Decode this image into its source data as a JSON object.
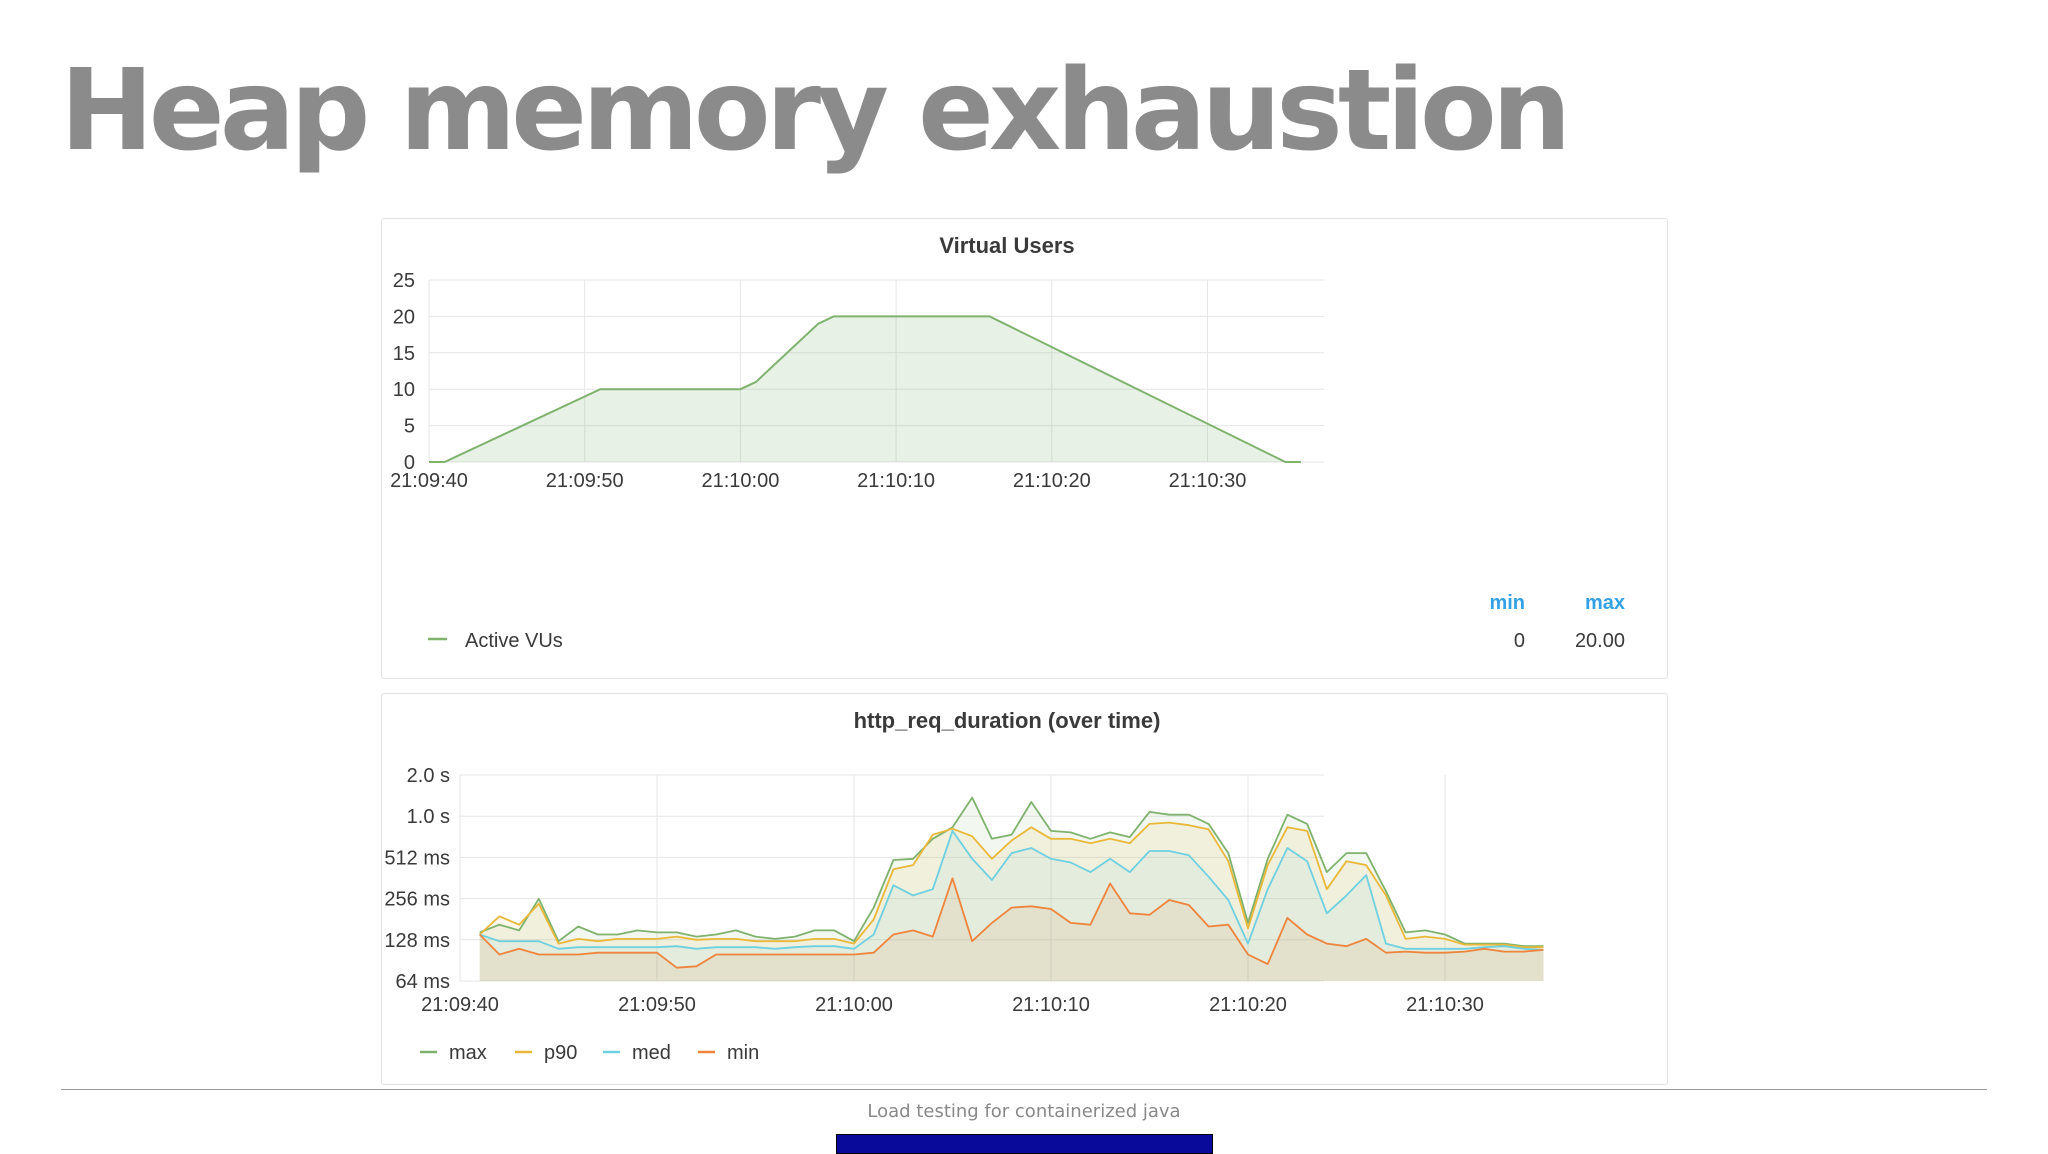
{
  "slide": {
    "title": "Heap memory exhaustion",
    "footer": "Load testing for containerized java"
  },
  "colors": {
    "max": "#7eb26d",
    "p90": "#eab839",
    "med": "#6ed0e0",
    "min": "#ef843c",
    "vus": "#7eb26d",
    "legend_header": "#33a2e5"
  },
  "chart_data": [
    {
      "type": "area",
      "title": "Virtual Users",
      "x_unit": "time",
      "x_ticks": [
        "21:09:40",
        "21:09:50",
        "21:10:00",
        "21:10:10",
        "21:10:20",
        "21:10:30"
      ],
      "xlim": [
        "21:09:40",
        "21:10:37"
      ],
      "y_ticks": [
        "0",
        "5",
        "10",
        "15",
        "20",
        "25"
      ],
      "ylim": [
        0,
        25
      ],
      "grid": true,
      "series": [
        {
          "name": "Active VUs",
          "x": [
            "21:09:40",
            "21:09:41",
            "21:09:51",
            "21:10:00",
            "21:10:01",
            "21:10:05",
            "21:10:06",
            "21:10:16",
            "21:10:35",
            "21:10:36"
          ],
          "values": [
            0,
            0,
            10,
            10,
            11,
            19,
            20,
            20,
            0,
            0
          ]
        }
      ],
      "legend": {
        "headers": [
          "min",
          "max"
        ],
        "rows": [
          {
            "name": "Active VUs",
            "min": "0",
            "max": "20.00"
          }
        ]
      }
    },
    {
      "type": "area",
      "title": "http_req_duration (over time)",
      "y_scale": "log2",
      "y_unit": "ms",
      "x_ticks": [
        "21:09:40",
        "21:09:50",
        "21:10:00",
        "21:10:10",
        "21:10:20",
        "21:10:30"
      ],
      "y_ticks": [
        "64 ms",
        "128 ms",
        "256 ms",
        "512 ms",
        "1.0 s",
        "2.0 s"
      ],
      "ylim": [
        64,
        2048
      ],
      "grid": true,
      "x": [
        "21:09:41",
        "21:09:42",
        "21:09:43",
        "21:09:44",
        "21:09:45",
        "21:09:46",
        "21:09:47",
        "21:09:48",
        "21:09:49",
        "21:09:50",
        "21:09:51",
        "21:09:52",
        "21:09:53",
        "21:09:54",
        "21:09:55",
        "21:09:56",
        "21:09:57",
        "21:09:58",
        "21:09:59",
        "21:10:00",
        "21:10:01",
        "21:10:02",
        "21:10:03",
        "21:10:04",
        "21:10:05",
        "21:10:06",
        "21:10:07",
        "21:10:08",
        "21:10:09",
        "21:10:10",
        "21:10:11",
        "21:10:12",
        "21:10:13",
        "21:10:14",
        "21:10:15",
        "21:10:16",
        "21:10:17",
        "21:10:18",
        "21:10:19",
        "21:10:20",
        "21:10:21",
        "21:10:22",
        "21:10:23",
        "21:10:24",
        "21:10:25",
        "21:10:26",
        "21:10:27",
        "21:10:28",
        "21:10:29",
        "21:10:30",
        "21:10:31",
        "21:10:32",
        "21:10:33",
        "21:10:34",
        "21:10:35"
      ],
      "series": [
        {
          "name": "max",
          "values": [
            145,
            165,
            150,
            255,
            125,
            160,
            140,
            140,
            150,
            145,
            145,
            135,
            140,
            150,
            135,
            130,
            135,
            150,
            150,
            125,
            220,
            490,
            500,
            700,
            850,
            1400,
            700,
            750,
            1300,
            800,
            780,
            700,
            780,
            720,
            1100,
            1050,
            1050,
            900,
            550,
            170,
            500,
            1050,
            900,
            400,
            550,
            550,
            290,
            145,
            150,
            140,
            120,
            120,
            120,
            115,
            115
          ]
        },
        {
          "name": "p90",
          "values": [
            140,
            190,
            165,
            235,
            120,
            130,
            125,
            130,
            130,
            130,
            135,
            128,
            130,
            130,
            125,
            125,
            125,
            130,
            130,
            120,
            180,
            420,
            450,
            750,
            830,
            730,
            500,
            680,
            850,
            700,
            700,
            650,
            700,
            650,
            900,
            920,
            880,
            820,
            480,
            155,
            450,
            850,
            800,
            300,
            480,
            450,
            270,
            130,
            135,
            130,
            118,
            118,
            118,
            113,
            113
          ]
        },
        {
          "name": "med",
          "values": [
            140,
            125,
            125,
            125,
            110,
            113,
            113,
            113,
            113,
            113,
            115,
            110,
            113,
            113,
            113,
            110,
            113,
            115,
            115,
            110,
            140,
            320,
            270,
            300,
            800,
            500,
            350,
            550,
            600,
            500,
            470,
            400,
            500,
            400,
            570,
            570,
            530,
            370,
            250,
            120,
            300,
            600,
            480,
            200,
            270,
            380,
            120,
            110,
            110,
            110,
            110,
            113,
            115,
            110,
            108
          ]
        },
        {
          "name": "min",
          "values": [
            140,
            100,
            110,
            100,
            100,
            100,
            103,
            103,
            103,
            103,
            80,
            82,
            100,
            100,
            100,
            100,
            100,
            100,
            100,
            100,
            103,
            140,
            150,
            135,
            360,
            125,
            170,
            220,
            225,
            215,
            170,
            165,
            330,
            200,
            195,
            250,
            230,
            160,
            165,
            100,
            85,
            185,
            140,
            120,
            115,
            130,
            103,
            105,
            103,
            103,
            105,
            110,
            105,
            105,
            108
          ]
        }
      ],
      "legend": [
        "max",
        "p90",
        "med",
        "min"
      ]
    }
  ]
}
